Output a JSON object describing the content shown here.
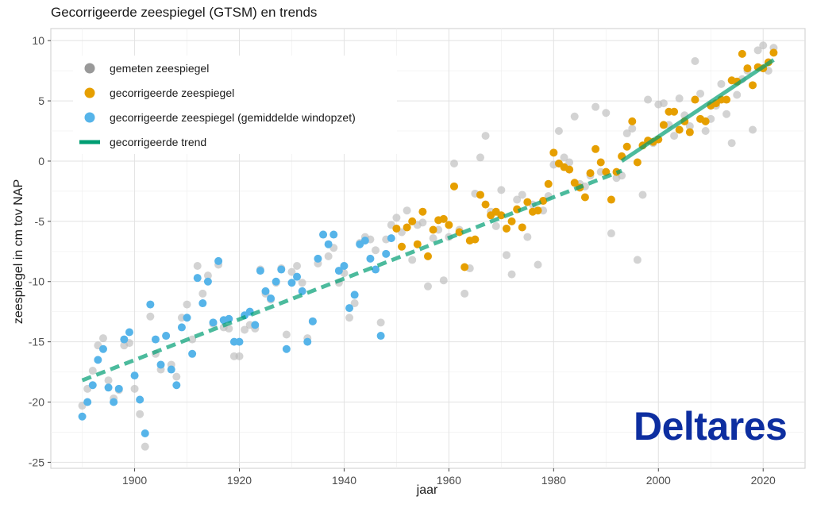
{
  "chart_data": {
    "type": "scatter",
    "title": "Gecorrigeerde zeespiegel (GTSM) en trends",
    "xlabel": "jaar",
    "ylabel": "zeespiegel in cm tov NAP",
    "xlim": [
      1884,
      2028
    ],
    "ylim": [
      -25.5,
      11
    ],
    "xticks": [
      1900,
      1920,
      1940,
      1960,
      1980,
      2000,
      2020
    ],
    "yticks": [
      -25,
      -20,
      -15,
      -10,
      -5,
      0,
      5,
      10
    ],
    "grid": true,
    "legend_position": "top-left",
    "logo_text": "Deltares",
    "legend": [
      {
        "label": "gemeten zeespiegel",
        "kind": "point",
        "color": "#999999"
      },
      {
        "label": "gecorrigeerde zeespiegel",
        "kind": "point",
        "color": "#E69F00"
      },
      {
        "label": "gecorrigeerde zeespiegel (gemiddelde windopzet)",
        "kind": "point",
        "color": "#56B4E9"
      },
      {
        "label": "gecorrigeerde trend",
        "kind": "line",
        "color": "#009E73"
      }
    ],
    "series": [
      {
        "name": "gemeten zeespiegel",
        "color": "#BBBBBB",
        "x": [
          1890,
          1891,
          1892,
          1893,
          1894,
          1895,
          1896,
          1897,
          1898,
          1899,
          1900,
          1901,
          1902,
          1903,
          1904,
          1905,
          1906,
          1907,
          1908,
          1909,
          1910,
          1911,
          1912,
          1913,
          1914,
          1915,
          1916,
          1917,
          1918,
          1919,
          1920,
          1921,
          1922,
          1923,
          1924,
          1925,
          1926,
          1927,
          1928,
          1929,
          1930,
          1931,
          1932,
          1933,
          1934,
          1935,
          1936,
          1937,
          1938,
          1939,
          1940,
          1941,
          1942,
          1943,
          1944,
          1945,
          1946,
          1947,
          1948,
          1949,
          1950,
          1951,
          1952,
          1953,
          1954,
          1955,
          1956,
          1957,
          1958,
          1959,
          1960,
          1961,
          1962,
          1963,
          1964,
          1965,
          1966,
          1967,
          1968,
          1969,
          1970,
          1971,
          1972,
          1973,
          1974,
          1975,
          1976,
          1977,
          1978,
          1979,
          1980,
          1981,
          1982,
          1983,
          1984,
          1985,
          1986,
          1987,
          1988,
          1989,
          1990,
          1991,
          1992,
          1993,
          1994,
          1995,
          1996,
          1997,
          1998,
          1999,
          2000,
          2001,
          2002,
          2003,
          2004,
          2005,
          2006,
          2007,
          2008,
          2009,
          2010,
          2011,
          2012,
          2013,
          2014,
          2015,
          2016,
          2017,
          2018,
          2019,
          2020,
          2021,
          2022
        ],
        "y": [
          -20.3,
          -18.9,
          -17.4,
          -15.3,
          -14.7,
          -18.2,
          -19.7,
          -19.0,
          -15.3,
          -15.1,
          -18.9,
          -21.0,
          -23.7,
          -12.9,
          -16.0,
          -17.3,
          -14.5,
          -16.9,
          -17.9,
          -13.0,
          -11.9,
          -14.8,
          -8.7,
          -11.0,
          -9.5,
          -13.5,
          -8.6,
          -13.8,
          -13.9,
          -16.2,
          -16.2,
          -14.0,
          -13.6,
          -13.9,
          -9.0,
          -11.0,
          -11.5,
          -10.1,
          -8.9,
          -14.4,
          -9.2,
          -8.7,
          -10.1,
          -14.7,
          -13.3,
          -8.5,
          -6.1,
          -7.9,
          -7.2,
          -10.1,
          -9.3,
          -13.0,
          -11.8,
          -6.8,
          -6.3,
          -6.5,
          -7.4,
          -13.4,
          -6.5,
          -5.3,
          -4.7,
          -5.9,
          -4.1,
          -8.2,
          -5.3,
          -5.1,
          -10.4,
          -6.4,
          -5.7,
          -9.9,
          -6.3,
          -0.2,
          -5.7,
          -11.0,
          -8.9,
          -2.7,
          0.3,
          2.1,
          -4.2,
          -5.4,
          -2.4,
          -7.8,
          -9.4,
          -3.2,
          -2.8,
          -6.3,
          -3.6,
          -8.6,
          -4.1,
          -2.9,
          -0.3,
          2.5,
          0.3,
          -0.1,
          3.7,
          -1.9,
          -2.1,
          -1.2,
          4.5,
          -0.9,
          4.0,
          -6.0,
          -1.4,
          -1.2,
          2.3,
          2.7,
          -8.2,
          -2.8,
          5.1,
          1.5,
          4.7,
          4.8,
          3.0,
          2.1,
          5.2,
          3.8,
          2.9,
          8.3,
          5.6,
          2.5,
          3.5,
          4.6,
          6.4,
          3.9,
          1.5,
          5.5,
          6.8,
          7.5,
          2.6,
          9.2,
          9.6,
          7.5,
          9.4
        ],
        "style": "circle"
      },
      {
        "name": "gecorrigeerde zeespiegel (gemiddelde windopzet)",
        "color": "#56B4E9",
        "x": [
          1890,
          1891,
          1892,
          1893,
          1894,
          1895,
          1896,
          1897,
          1898,
          1899,
          1900,
          1901,
          1902,
          1903,
          1904,
          1905,
          1906,
          1907,
          1908,
          1909,
          1910,
          1911,
          1912,
          1913,
          1914,
          1915,
          1916,
          1917,
          1918,
          1919,
          1920,
          1921,
          1922,
          1923,
          1924,
          1925,
          1926,
          1927,
          1928,
          1929,
          1930,
          1931,
          1932,
          1933,
          1934,
          1935,
          1936,
          1937,
          1938,
          1939,
          1940,
          1941,
          1942,
          1943,
          1944,
          1945,
          1946,
          1947,
          1948,
          1949
        ],
        "y": [
          -21.2,
          -20.0,
          -18.6,
          -16.5,
          -15.6,
          -18.8,
          -20.0,
          -18.9,
          -14.8,
          -14.2,
          -17.8,
          -19.8,
          -22.6,
          -11.9,
          -14.8,
          -16.9,
          -14.5,
          -17.3,
          -18.6,
          -13.8,
          -13.0,
          -16.0,
          -9.7,
          -11.8,
          -10.0,
          -13.4,
          -8.3,
          -13.2,
          -13.1,
          -15.0,
          -15.0,
          -12.8,
          -12.5,
          -13.6,
          -9.1,
          -10.8,
          -11.4,
          -10.0,
          -9.0,
          -15.6,
          -10.1,
          -9.6,
          -10.8,
          -15.0,
          -13.3,
          -8.1,
          -6.1,
          -6.9,
          -6.1,
          -9.1,
          -8.7,
          -12.2,
          -11.1,
          -6.9,
          -6.6,
          -8.1,
          -9.0,
          -14.5,
          -7.7,
          -6.4
        ],
        "style": "circle"
      },
      {
        "name": "gecorrigeerde zeespiegel",
        "color": "#E69F00",
        "x": [
          1950,
          1951,
          1952,
          1953,
          1954,
          1955,
          1956,
          1957,
          1958,
          1959,
          1960,
          1961,
          1962,
          1963,
          1964,
          1965,
          1966,
          1967,
          1968,
          1969,
          1970,
          1971,
          1972,
          1973,
          1974,
          1975,
          1976,
          1977,
          1978,
          1979,
          1980,
          1981,
          1982,
          1983,
          1984,
          1985,
          1986,
          1987,
          1988,
          1989,
          1990,
          1991,
          1992,
          1993,
          1994,
          1995,
          1996,
          1997,
          1998,
          1999,
          2000,
          2001,
          2002,
          2003,
          2004,
          2005,
          2006,
          2007,
          2008,
          2009,
          2010,
          2011,
          2012,
          2013,
          2014,
          2015,
          2016,
          2017,
          2018,
          2019,
          2020,
          2021,
          2022
        ],
        "y": [
          -5.6,
          -7.1,
          -5.5,
          -5.0,
          -6.9,
          -4.2,
          -7.9,
          -5.7,
          -4.9,
          -4.8,
          -5.3,
          -2.1,
          -5.9,
          -8.8,
          -6.6,
          -6.5,
          -2.8,
          -3.6,
          -4.5,
          -4.2,
          -4.5,
          -5.6,
          -5.0,
          -4.0,
          -5.5,
          -3.4,
          -4.2,
          -4.1,
          -3.3,
          -1.9,
          0.7,
          -0.2,
          -0.5,
          -0.7,
          -1.8,
          -2.2,
          -3.0,
          -1.0,
          1.0,
          -0.1,
          -0.9,
          -3.2,
          -0.9,
          0.4,
          1.2,
          3.3,
          -0.1,
          1.3,
          1.7,
          1.6,
          1.8,
          3.0,
          4.1,
          4.1,
          2.6,
          3.3,
          2.4,
          5.1,
          3.5,
          3.3,
          4.6,
          4.8,
          5.1,
          5.1,
          6.7,
          6.6,
          8.9,
          7.7,
          6.3,
          7.8,
          7.7,
          8.2,
          9.0
        ],
        "style": "circle"
      }
    ],
    "trend": {
      "name": "gecorrigeerde trend",
      "color": "#009E73",
      "segments": [
        {
          "x": [
            1890,
            1993
          ],
          "y": [
            -18.2,
            -0.8
          ],
          "style": "dashed"
        },
        {
          "x": [
            1993,
            2022
          ],
          "y": [
            0.0,
            8.4
          ],
          "style": "solid"
        }
      ]
    }
  }
}
